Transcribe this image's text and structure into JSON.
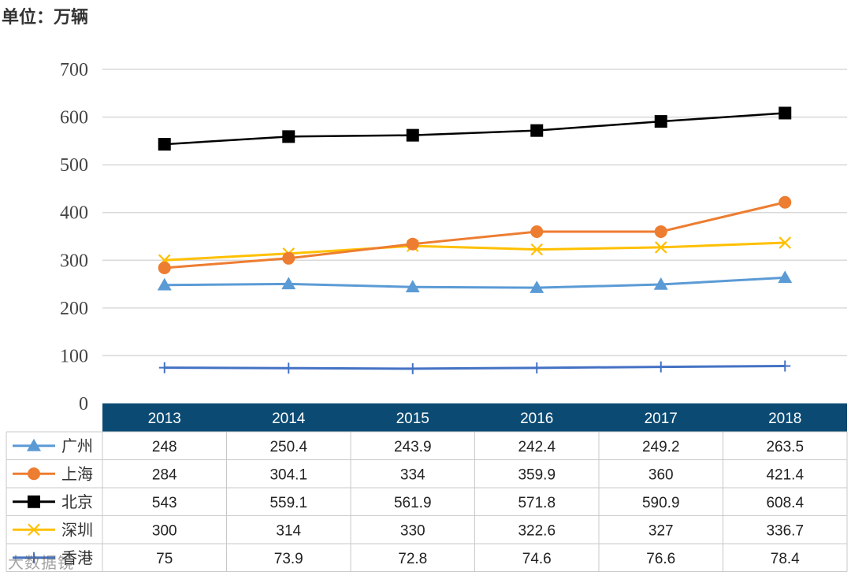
{
  "unit_label": "单位：万辆",
  "watermark": "大数据镜",
  "chart_data": {
    "type": "line",
    "categories": [
      "2013",
      "2014",
      "2015",
      "2016",
      "2017",
      "2018"
    ],
    "ylim": [
      0,
      700
    ],
    "yticks": [
      0,
      100,
      200,
      300,
      400,
      500,
      600,
      700
    ],
    "grid": true,
    "legend": "data-table",
    "series": [
      {
        "name": "广州",
        "values": [
          248,
          250.4,
          243.9,
          242.4,
          249.2,
          263.5
        ],
        "labels": [
          "248",
          "250.4",
          "243.9",
          "242.4",
          "249.2",
          "263.5"
        ],
        "color": "#5B9BD5",
        "marker": "triangle"
      },
      {
        "name": "上海",
        "values": [
          284,
          304.1,
          334,
          359.9,
          360,
          421.4
        ],
        "labels": [
          "284",
          "304.1",
          "334",
          "359.9",
          "360",
          "421.4"
        ],
        "color": "#ED7D31",
        "marker": "circle"
      },
      {
        "name": "北京",
        "values": [
          543,
          559.1,
          561.9,
          571.8,
          590.9,
          608.4
        ],
        "labels": [
          "543",
          "559.1",
          "561.9",
          "571.8",
          "590.9",
          "608.4"
        ],
        "color": "#000000",
        "marker": "square"
      },
      {
        "name": "深圳",
        "values": [
          300,
          314,
          330,
          322.6,
          327,
          336.7
        ],
        "labels": [
          "300",
          "314",
          "330",
          "322.6",
          "327",
          "336.7"
        ],
        "color": "#FFC000",
        "marker": "x"
      },
      {
        "name": "香港",
        "values": [
          75,
          73.9,
          72.8,
          74.6,
          76.6,
          78.4
        ],
        "labels": [
          "75",
          "73.9",
          "72.8",
          "74.6",
          "76.6",
          "78.4"
        ],
        "color": "#4472C4",
        "marker": "plus"
      }
    ]
  },
  "colors": {
    "header_bg": "#0B4A73",
    "grid": "#D9D9D9",
    "table_border": "#C8C8C8"
  }
}
